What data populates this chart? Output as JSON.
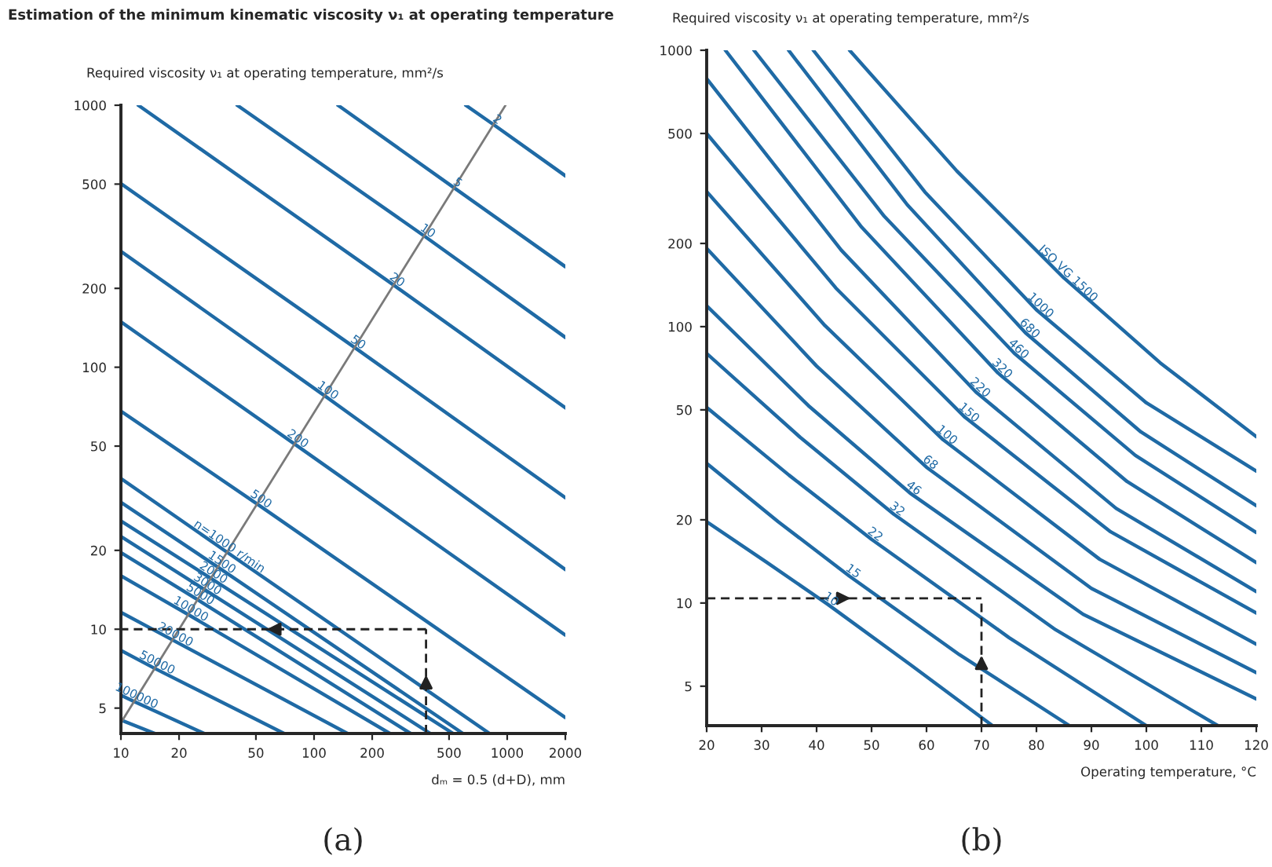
{
  "chart_data": [
    {
      "type": "line",
      "title": "Estimation of the minimum kinematic viscosity ν₁ at operating temperature",
      "ylabel": "Required viscosity ν₁ at operating temperature, mm²/s",
      "xlabel": "dₘ = 0.5 (d+D), mm",
      "log": "xy",
      "xlim": [
        10,
        2000
      ],
      "ylim": [
        4,
        1000
      ],
      "xticks": [
        10,
        20,
        50,
        100,
        200,
        500,
        1000,
        2000
      ],
      "yticks": [
        5,
        10,
        20,
        50,
        100,
        200,
        500,
        1000
      ],
      "annotations": [
        "(a)"
      ],
      "series": [
        {
          "name": "2",
          "color": "#1f6aa5",
          "x": [
            610,
            851,
            2000
          ],
          "values": [
            1000,
            843,
            538
          ]
        },
        {
          "name": "5",
          "color": "#1f6aa5",
          "x": [
            133,
            531,
            2000
          ],
          "values": [
            1000,
            484,
            242
          ]
        },
        {
          "name": "10",
          "color": "#1f6aa5",
          "x": [
            40,
            372,
            2000
          ],
          "values": [
            1000,
            317,
            130
          ]
        },
        {
          "name": "20",
          "color": "#1f6aa5",
          "x": [
            12.3,
            258,
            2000
          ],
          "values": [
            1000,
            206,
            70
          ]
        },
        {
          "name": "50",
          "color": "#1f6aa5",
          "x": [
            10,
            162,
            2000
          ],
          "values": [
            502,
            119,
            31.8
          ]
        },
        {
          "name": "100",
          "color": "#1f6aa5",
          "x": [
            10,
            113,
            2000
          ],
          "values": [
            277,
            78,
            16.9
          ]
        },
        {
          "name": "200",
          "color": "#1f6aa5",
          "x": [
            10,
            79,
            2000
          ],
          "values": [
            149,
            51,
            9.5
          ]
        },
        {
          "name": "500",
          "color": "#1f6aa5",
          "x": [
            10,
            51,
            2000
          ],
          "values": [
            68,
            30,
            4.6
          ]
        },
        {
          "name": "n=1000 r/min",
          "color": "#1f6aa5",
          "x": [
            10,
            35,
            810
          ],
          "values": [
            37.6,
            19.8,
            4
          ]
        },
        {
          "name": "1500",
          "color": "#1f6aa5",
          "x": [
            10,
            32,
            590
          ],
          "values": [
            30.5,
            17.2,
            4
          ]
        },
        {
          "name": "2000",
          "color": "#1f6aa5",
          "x": [
            10,
            29,
            525
          ],
          "values": [
            25.9,
            15.7,
            4
          ]
        },
        {
          "name": "3000",
          "color": "#1f6aa5",
          "x": [
            10,
            27,
            400
          ],
          "values": [
            22.6,
            14.2,
            4
          ]
        },
        {
          "name": "5000",
          "color": "#1f6aa5",
          "x": [
            10,
            24.8,
            316
          ],
          "values": [
            19.6,
            13.0,
            4
          ]
        },
        {
          "name": "10000",
          "color": "#1f6aa5",
          "x": [
            10,
            22.2,
            247
          ],
          "values": [
            16,
            11.4,
            4
          ]
        },
        {
          "name": "20000",
          "color": "#1f6aa5",
          "x": [
            10,
            18.5,
            149
          ],
          "values": [
            11.6,
            9.1,
            4
          ]
        },
        {
          "name": "50000",
          "color": "#1f6aa5",
          "x": [
            10,
            14.9,
            70
          ],
          "values": [
            8.3,
            7.1,
            4
          ]
        },
        {
          "name": "100000",
          "color": "#1f6aa5",
          "x": [
            10,
            11.7,
            27
          ],
          "values": [
            5.6,
            5.3,
            4
          ]
        },
        {
          "color": "#1f6aa5",
          "x": [
            10,
            15
          ],
          "values": [
            4.5,
            4
          ]
        },
        {
          "color": "#7a7a7a",
          "x": [
            10,
            980
          ],
          "values": [
            4.4,
            1000
          ]
        },
        {
          "color": "#222222",
          "line_style": "dashed",
          "x": [
            380,
            380
          ],
          "values": [
            4,
            10
          ]
        },
        {
          "color": "#222222",
          "line_style": "dashed",
          "x": [
            380,
            10
          ],
          "values": [
            10,
            10
          ]
        }
      ]
    },
    {
      "type": "line",
      "ylabel": "Required viscosity ν₁ at operating temperature, mm²/s",
      "xlabel": "Operating temperature, °C",
      "log": "y",
      "xlim": [
        20,
        120
      ],
      "ylim": [
        3.6,
        1000
      ],
      "xticks": [
        20,
        30,
        40,
        50,
        60,
        70,
        80,
        90,
        100,
        110,
        120
      ],
      "yticks": [
        5,
        10,
        20,
        50,
        100,
        200,
        500,
        1000
      ],
      "annotations": [
        "(b)"
      ],
      "series": [
        {
          "name": "ISO VG 1500",
          "color": "#1f6aa5",
          "x": [
            46,
            65.5,
            85,
            102.5,
            120
          ],
          "values": [
            1000,
            366,
            150,
            74,
            40
          ]
        },
        {
          "name": "1000",
          "color": "#1f6aa5",
          "x": [
            39.4,
            59.7,
            80,
            100,
            120
          ],
          "values": [
            1000,
            307,
            115,
            53,
            30
          ]
        },
        {
          "name": "680",
          "color": "#1f6aa5",
          "x": [
            34.9,
            56.5,
            78,
            99,
            120
          ],
          "values": [
            1000,
            276,
            95,
            41.6,
            22.5
          ]
        },
        {
          "name": "460",
          "color": "#1f6aa5",
          "x": [
            28.6,
            52.3,
            76,
            98,
            120
          ],
          "values": [
            1000,
            251,
            80,
            34.2,
            18
          ]
        },
        {
          "name": "320",
          "color": "#1f6aa5",
          "x": [
            23.4,
            48.2,
            73,
            96.5,
            120
          ],
          "values": [
            1000,
            229,
            68,
            27.5,
            14
          ]
        },
        {
          "name": "220",
          "color": "#1f6aa5",
          "x": [
            20,
            44.5,
            69,
            94.5,
            120
          ],
          "values": [
            790,
            189,
            58,
            22,
            11
          ]
        },
        {
          "name": "150",
          "color": "#1f6aa5",
          "x": [
            20,
            43.5,
            67,
            93.5,
            120
          ],
          "values": [
            500,
            138,
            47,
            18.1,
            9.2
          ]
        },
        {
          "name": "100",
          "color": "#1f6aa5",
          "x": [
            20,
            41.5,
            63,
            91.5,
            120
          ],
          "values": [
            308,
            101,
            39,
            14.4,
            7.1
          ]
        },
        {
          "name": "68",
          "color": "#1f6aa5",
          "x": [
            20,
            40,
            60,
            90,
            120
          ],
          "values": [
            192,
            72,
            31,
            11.3,
            5.6
          ]
        },
        {
          "name": "46",
          "color": "#1f6aa5",
          "x": [
            20,
            38.5,
            57,
            88.5,
            120
          ],
          "values": [
            119,
            51.8,
            25,
            9.1,
            4.5
          ]
        },
        {
          "name": "32",
          "color": "#1f6aa5",
          "x": [
            20,
            37,
            54,
            83.5,
            113
          ],
          "values": [
            80,
            39.8,
            21,
            8.0,
            3.6
          ]
        },
        {
          "name": "22",
          "color": "#1f6aa5",
          "x": [
            20,
            35,
            50,
            75,
            100
          ],
          "values": [
            51,
            29,
            17,
            7.5,
            3.6
          ]
        },
        {
          "name": "15",
          "color": "#1f6aa5",
          "x": [
            20,
            33,
            46,
            66,
            86
          ],
          "values": [
            32,
            19.7,
            12.5,
            6.5,
            3.6
          ]
        },
        {
          "name": "10",
          "color": "#1f6aa5",
          "x": [
            20,
            31,
            42,
            57,
            72
          ],
          "values": [
            19.7,
            14.0,
            9.9,
            6.0,
            3.6
          ]
        },
        {
          "color": "#222222",
          "line_style": "dashed",
          "x": [
            20,
            70
          ],
          "values": [
            10.4,
            10.4
          ]
        },
        {
          "color": "#222222",
          "line_style": "dashed",
          "x": [
            70,
            70
          ],
          "values": [
            3.6,
            10.4
          ]
        }
      ]
    }
  ]
}
